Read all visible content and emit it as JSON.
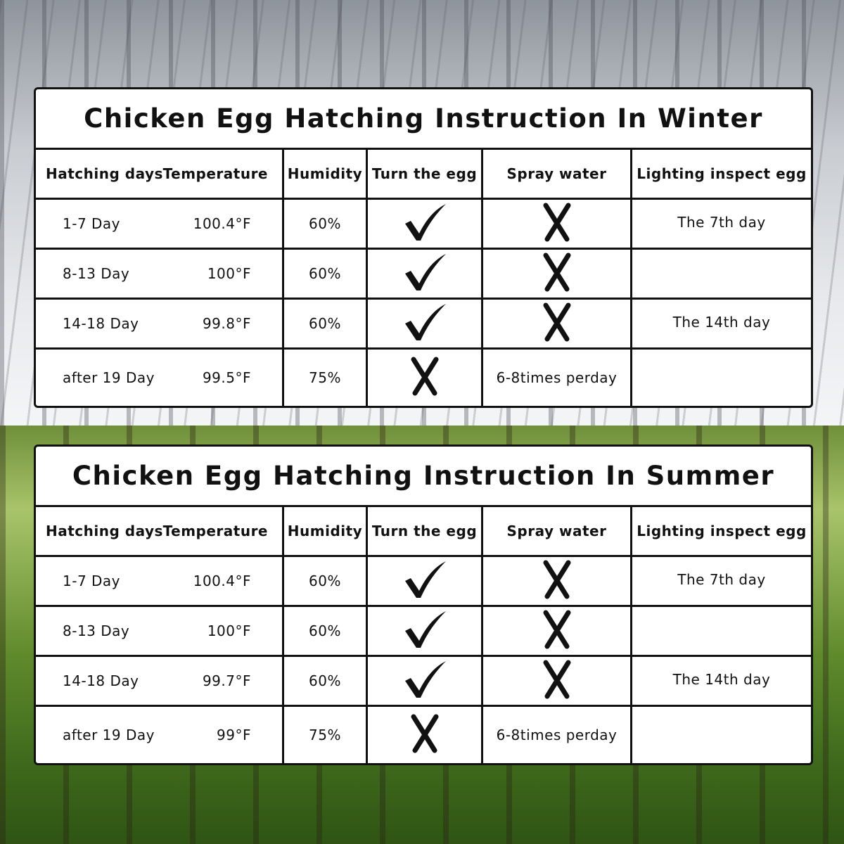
{
  "colors": {
    "border": "#111111",
    "panel": "#ffffff"
  },
  "tables": [
    {
      "title": "Chicken Egg Hatching Instruction In Winter",
      "headers": [
        "Hatching days",
        "Temperature",
        "Humidity",
        "Turn the egg",
        "Spray water",
        "Lighting inspect egg"
      ],
      "rows": [
        {
          "days": "1-7 Day",
          "temperature": "100.4°F",
          "humidity": "60%",
          "turn": "check-icon",
          "spray": "cross-icon",
          "inspect": "The 7th day"
        },
        {
          "days": "8-13 Day",
          "temperature": "100°F",
          "humidity": "60%",
          "turn": "check-icon",
          "spray": "cross-icon",
          "inspect": ""
        },
        {
          "days": "14-18 Day",
          "temperature": "99.8°F",
          "humidity": "60%",
          "turn": "check-icon",
          "spray": "cross-icon",
          "inspect": "The 14th day"
        },
        {
          "days": "after 19 Day",
          "temperature": "99.5°F",
          "humidity": "75%",
          "turn": "cross-icon",
          "spray": "6-8times perday",
          "inspect": ""
        }
      ]
    },
    {
      "title": "Chicken Egg Hatching Instruction In Summer",
      "headers": [
        "Hatching days",
        "Temperature",
        "Humidity",
        "Turn the egg",
        "Spray water",
        "Lighting inspect egg"
      ],
      "rows": [
        {
          "days": "1-7 Day",
          "temperature": "100.4°F",
          "humidity": "60%",
          "turn": "check-icon",
          "spray": "cross-icon",
          "inspect": "The 7th day"
        },
        {
          "days": "8-13 Day",
          "temperature": "100°F",
          "humidity": "60%",
          "turn": "check-icon",
          "spray": "cross-icon",
          "inspect": ""
        },
        {
          "days": "14-18 Day",
          "temperature": "99.7°F",
          "humidity": "60%",
          "turn": "check-icon",
          "spray": "cross-icon",
          "inspect": "The 14th day"
        },
        {
          "days": "after 19 Day",
          "temperature": "99°F",
          "humidity": "75%",
          "turn": "cross-icon",
          "spray": "6-8times perday",
          "inspect": ""
        }
      ]
    }
  ]
}
